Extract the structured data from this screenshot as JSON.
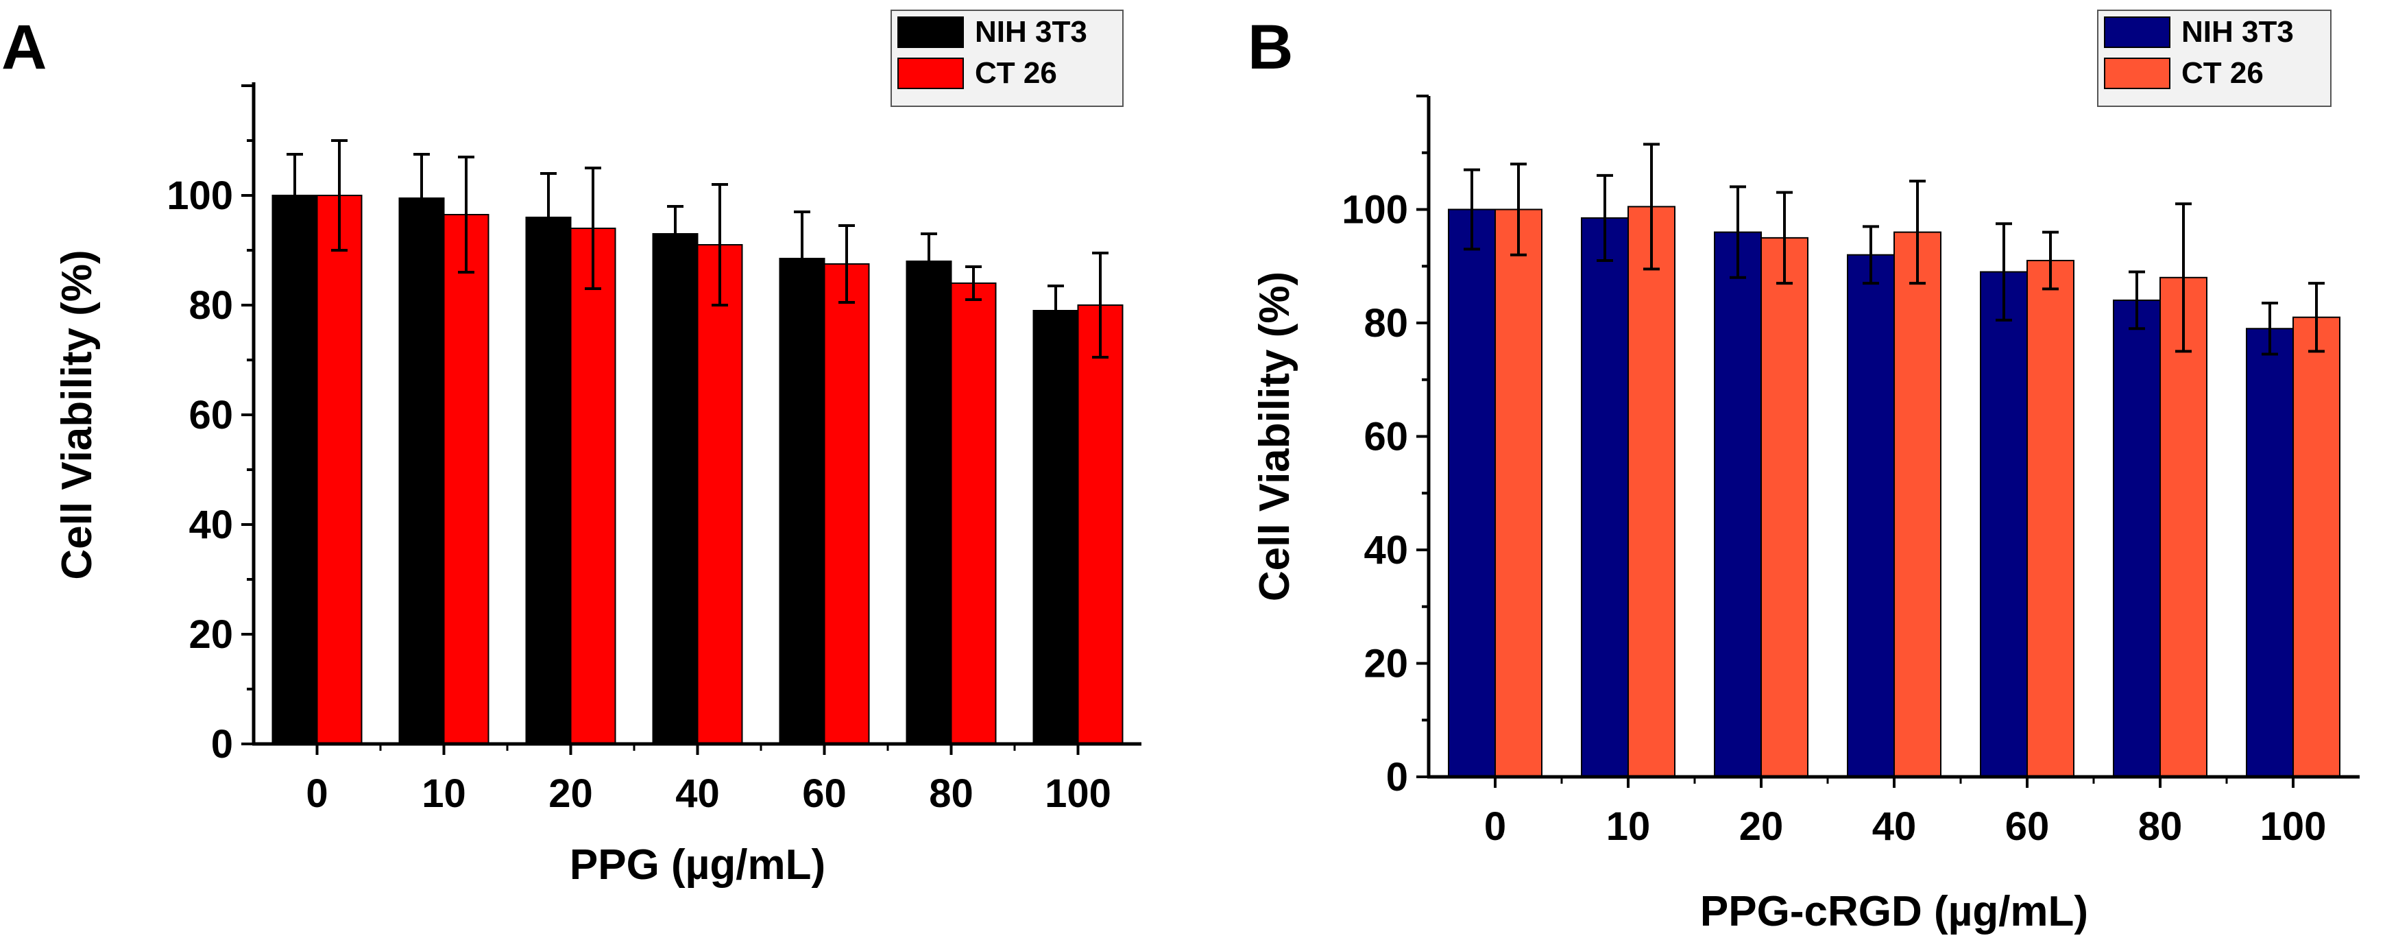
{
  "chart_data": [
    {
      "type": "bar",
      "panel_label": "A",
      "title": "",
      "xlabel": "PPG (µg/mL)",
      "ylabel": "Cell Viability (%)",
      "categories": [
        "0",
        "10",
        "20",
        "40",
        "60",
        "80",
        "100"
      ],
      "yticks": [
        "0",
        "20",
        "40",
        "60",
        "80",
        "100"
      ],
      "ylim": [
        0,
        120
      ],
      "legend_position": "top-right",
      "series": [
        {
          "name": "NIH 3T3",
          "color": "#000000",
          "values": [
            100,
            99.5,
            96,
            93,
            88.5,
            88,
            79
          ],
          "errors": [
            7.5,
            8,
            8,
            5,
            8.5,
            5,
            4.5
          ]
        },
        {
          "name": "CT 26",
          "color": "#ff0000",
          "values": [
            100,
            96.5,
            94,
            91,
            87.5,
            84,
            80
          ],
          "errors": [
            10,
            10.5,
            11,
            11,
            7,
            3,
            9.5
          ]
        }
      ]
    },
    {
      "type": "bar",
      "panel_label": "B",
      "title": "",
      "xlabel": "PPG-cRGD (µg/mL)",
      "ylabel": "Cell Viability (%)",
      "categories": [
        "0",
        "10",
        "20",
        "40",
        "60",
        "80",
        "100"
      ],
      "yticks": [
        "0",
        "20",
        "40",
        "60",
        "80",
        "100"
      ],
      "ylim": [
        0,
        120
      ],
      "legend_position": "top-right",
      "series": [
        {
          "name": "NIH 3T3",
          "color": "#000080",
          "values": [
            100,
            98.5,
            96,
            92,
            89,
            84,
            79
          ],
          "errors": [
            7,
            7.5,
            8,
            5,
            8.5,
            5,
            4.5
          ]
        },
        {
          "name": "CT 26",
          "color": "#ff5533",
          "values": [
            100,
            100.5,
            95,
            96,
            91,
            88,
            81
          ],
          "errors": [
            8,
            11,
            8,
            9,
            5,
            13,
            6
          ]
        }
      ]
    }
  ]
}
